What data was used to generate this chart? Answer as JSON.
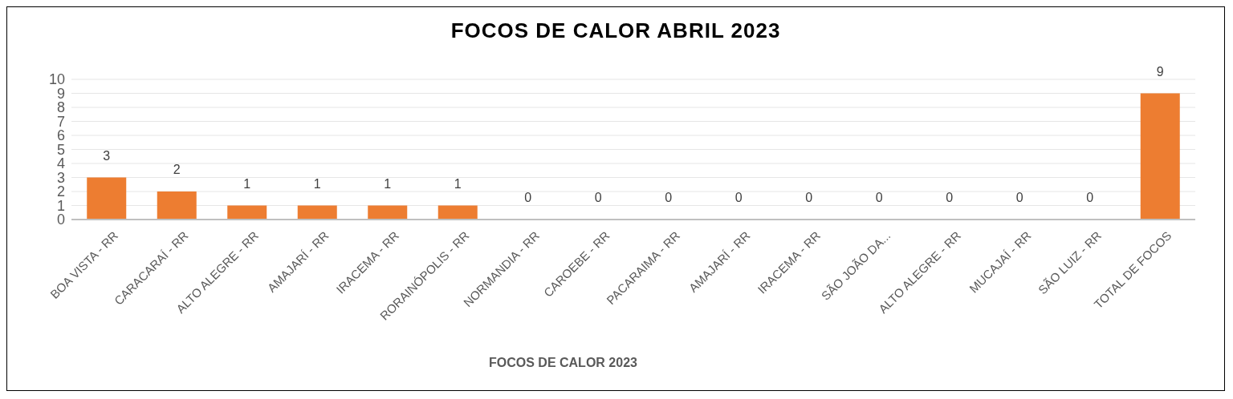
{
  "chart_data": {
    "type": "bar",
    "title": "FOCOS DE CALOR ABRIL 2023",
    "xlabel": "FOCOS DE CALOR 2023",
    "categories": [
      "BOA VISTA - RR",
      "CARACARAÍ - RR",
      "ALTO ALEGRE - RR",
      "AMAJARÍ - RR",
      "IRACEMA - RR",
      "RORAINÓPOLIS - RR",
      "NORMANDIA - RR",
      "CAROEBE - RR",
      "PACARAIMA - RR",
      "AMAJARÍ - RR",
      "IRACEMA - RR",
      "SÃO JOÃO DA...",
      "ALTO ALEGRE - RR",
      "MUCAJAÍ - RR",
      "SÃO LUIZ - RR",
      "TOTAL DE FOCOS"
    ],
    "values": [
      3,
      2,
      1,
      1,
      1,
      1,
      0,
      0,
      0,
      0,
      0,
      0,
      0,
      0,
      0,
      9
    ],
    "color": "#ed7d31",
    "ylim": [
      0,
      10
    ],
    "yticks": [
      0,
      1,
      2,
      3,
      4,
      5,
      6,
      7,
      8,
      9,
      10
    ],
    "grid": "y",
    "data_labels": true
  }
}
